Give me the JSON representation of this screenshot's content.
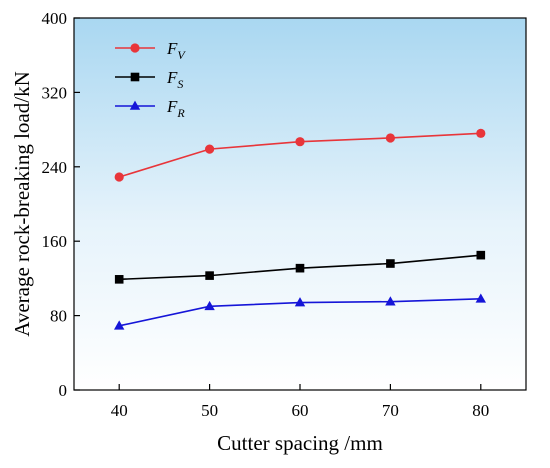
{
  "chart_data": {
    "type": "line",
    "title": "",
    "xlabel": "Cutter spacing /mm",
    "ylabel": "Average rock-breaking load/kN",
    "x": [
      40,
      50,
      60,
      70,
      80
    ],
    "xlim": [
      35,
      85
    ],
    "ylim": [
      0,
      400
    ],
    "xticks": [
      "40",
      "50",
      "60",
      "70",
      "80"
    ],
    "yticks": [
      "0",
      "80",
      "160",
      "240",
      "320",
      "400"
    ],
    "grid": false,
    "legend_position": "top-left",
    "background": "vertical gradient, light blue at top fading to white",
    "series": [
      {
        "name": "F",
        "subscript": "V",
        "color": "#e8353a",
        "marker": "circle",
        "values": [
          229,
          259,
          267,
          271,
          276
        ]
      },
      {
        "name": "F",
        "subscript": "S",
        "color": "#000000",
        "marker": "square",
        "values": [
          119,
          123,
          131,
          136,
          145
        ]
      },
      {
        "name": "F",
        "subscript": "R",
        "color": "#1515d8",
        "marker": "triangle",
        "values": [
          69,
          90,
          94,
          95,
          98
        ]
      }
    ]
  }
}
